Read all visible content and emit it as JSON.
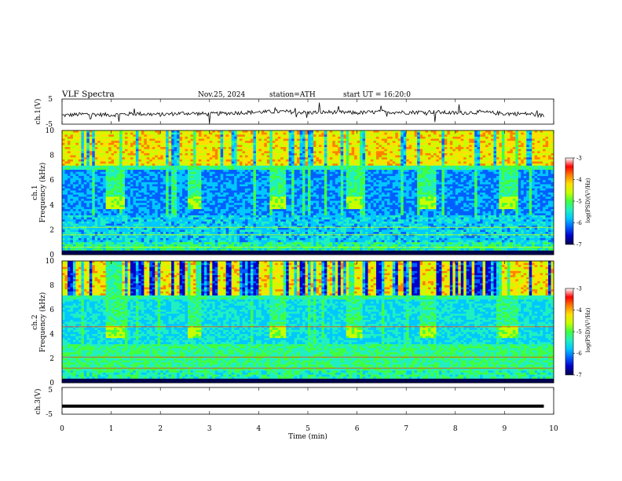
{
  "header": {
    "title": "VLF  Spectra",
    "date": "Nov.25, 2024",
    "station": "station=ATH",
    "start": "start  UT  =    16:20:0"
  },
  "chart_data": [
    {
      "type": "line",
      "panel": "ch1",
      "ylabel": "ch.1(V)",
      "ylim": [
        -5,
        5
      ],
      "yticks": [
        "5",
        "-5"
      ],
      "x": [
        0,
        0.5,
        1,
        1.5,
        2,
        2.5,
        3,
        3.5,
        4,
        4.5,
        5,
        5.5,
        6,
        6.5,
        7,
        7.5,
        8,
        8.5,
        9,
        9.5,
        9.8
      ],
      "y": [
        -1.5,
        -1.0,
        -1.3,
        -0.8,
        -1.2,
        -0.6,
        -1.0,
        -0.5,
        -0.2,
        0.0,
        -0.4,
        -0.2,
        -0.5,
        -0.1,
        -0.3,
        -0.1,
        -0.6,
        -0.2,
        -0.8,
        -0.9,
        -1.6
      ]
    },
    {
      "type": "heatmap",
      "panel": "ch1-spectrogram",
      "ylabel": "ch.1\nFrequency (kHz)",
      "ylim": [
        0,
        10
      ],
      "yticks": [
        "0",
        "2",
        "4",
        "6",
        "8",
        "10"
      ],
      "bursts_min": [
        [
          0.9,
          1.25
        ],
        [
          2.55,
          2.85
        ],
        [
          4.2,
          4.55
        ],
        [
          5.8,
          6.1
        ],
        [
          7.3,
          7.6
        ],
        [
          8.9,
          9.25
        ]
      ],
      "burst_band_khz": [
        3.6,
        4.6
      ],
      "colorbar": {
        "label": "log(PSD)(V²/Hz)",
        "ticks": [
          "-3",
          "-4",
          "-5",
          "-6",
          "-7"
        ],
        "range": [
          -7,
          -3
        ]
      }
    },
    {
      "type": "heatmap",
      "panel": "ch2-spectrogram",
      "ylabel": "ch.2\nFrequency (kHz)",
      "ylim": [
        0,
        10
      ],
      "yticks": [
        "0",
        "2",
        "4",
        "6",
        "8",
        "10"
      ],
      "bursts_min": [
        [
          0.9,
          1.25
        ],
        [
          2.55,
          2.85
        ],
        [
          4.2,
          4.55
        ],
        [
          5.8,
          6.1
        ],
        [
          7.3,
          7.6
        ],
        [
          8.9,
          9.25
        ]
      ],
      "burst_band_khz": [
        3.6,
        4.6
      ],
      "colorbar": {
        "label": "log(PSD)(V²/Hz)",
        "ticks": [
          "-3",
          "-4",
          "-5",
          "-6",
          "-7"
        ],
        "range": [
          -7,
          -3
        ]
      }
    },
    {
      "type": "line",
      "panel": "ch3",
      "ylabel": "ch.3(V)",
      "ylim": [
        -5,
        5
      ],
      "yticks": [
        "5",
        "-5"
      ],
      "x": [
        0,
        9.8
      ],
      "y": [
        -2,
        -2
      ]
    }
  ],
  "xaxis": {
    "label": "Time  (min)",
    "ticks": [
      "0",
      "1",
      "2",
      "3",
      "4",
      "5",
      "6",
      "7",
      "8",
      "9",
      "10"
    ],
    "xlim": [
      0,
      10
    ]
  },
  "colors": {
    "colormap": [
      "#000050",
      "#0000c8",
      "#0060ff",
      "#00c8ff",
      "#20f0c0",
      "#40ff40",
      "#c8ff00",
      "#ffe000",
      "#ff8000",
      "#ff0000",
      "#ffffff"
    ]
  }
}
